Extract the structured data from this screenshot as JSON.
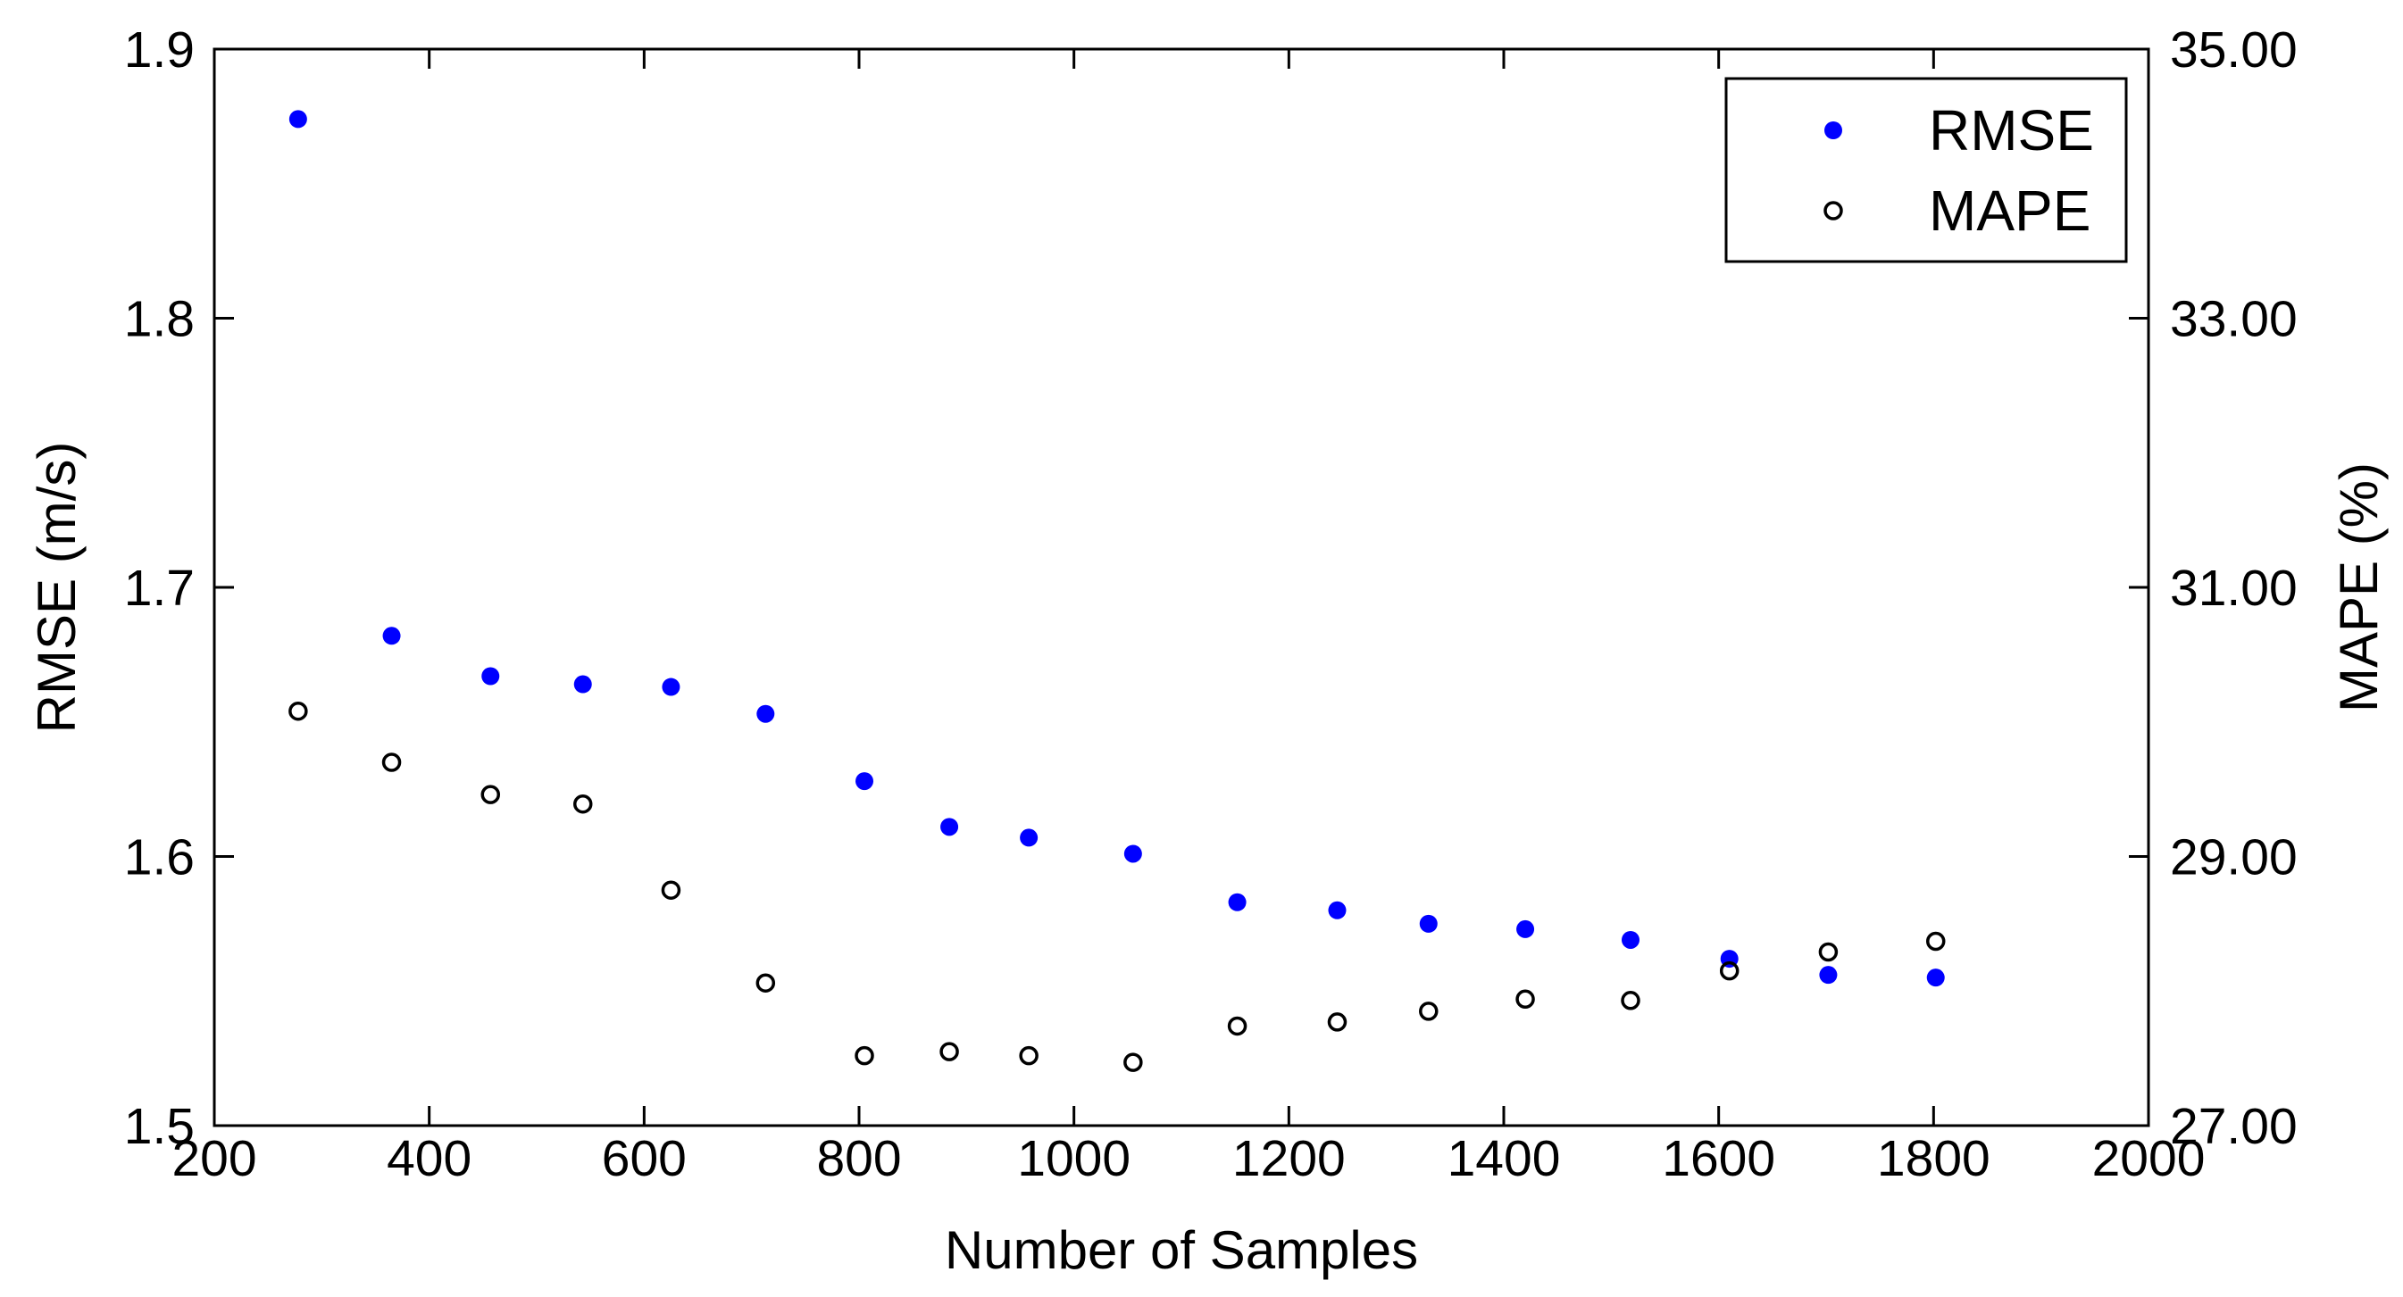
{
  "chart_data": {
    "type": "scatter",
    "title": "",
    "xlabel": "Number of Samples",
    "ylabel": "RMSE (m/s)",
    "ylabel_right": "MAPE (%)",
    "xlim": [
      200,
      2000
    ],
    "ylim": [
      1.5,
      1.9
    ],
    "ylim_right": [
      27,
      35
    ],
    "x_ticks": [
      "200",
      "400",
      "600",
      "800",
      "1000",
      "1200",
      "1400",
      "1600",
      "1800",
      "2000"
    ],
    "y_ticks": [
      "1.5",
      "1.6",
      "1.7",
      "1.8",
      "1.9"
    ],
    "y_ticks_right": [
      "27.00",
      "29.00",
      "31.00",
      "33.00",
      "35.00"
    ],
    "grid": false,
    "legend_position": "top-right",
    "x": [
      278,
      365,
      457,
      543,
      625,
      713,
      805,
      884,
      958,
      1055,
      1152,
      1245,
      1330,
      1420,
      1518,
      1610,
      1702,
      1802
    ],
    "series": [
      {
        "name": "RMSE",
        "axis": "left",
        "marker": "filled-circle",
        "color": "#0000ff",
        "values": [
          1.874,
          1.682,
          1.667,
          1.664,
          1.663,
          1.653,
          1.628,
          1.611,
          1.607,
          1.601,
          1.583,
          1.58,
          1.575,
          1.573,
          1.569,
          1.562,
          1.556,
          1.555
        ]
      },
      {
        "name": "MAPE",
        "axis": "right",
        "marker": "open-circle",
        "color": "#000000",
        "values": [
          30.08,
          29.7,
          29.46,
          29.39,
          28.75,
          28.06,
          27.52,
          27.55,
          27.52,
          27.47,
          27.74,
          27.77,
          27.85,
          27.94,
          27.93,
          28.15,
          28.29,
          28.37
        ]
      }
    ]
  }
}
